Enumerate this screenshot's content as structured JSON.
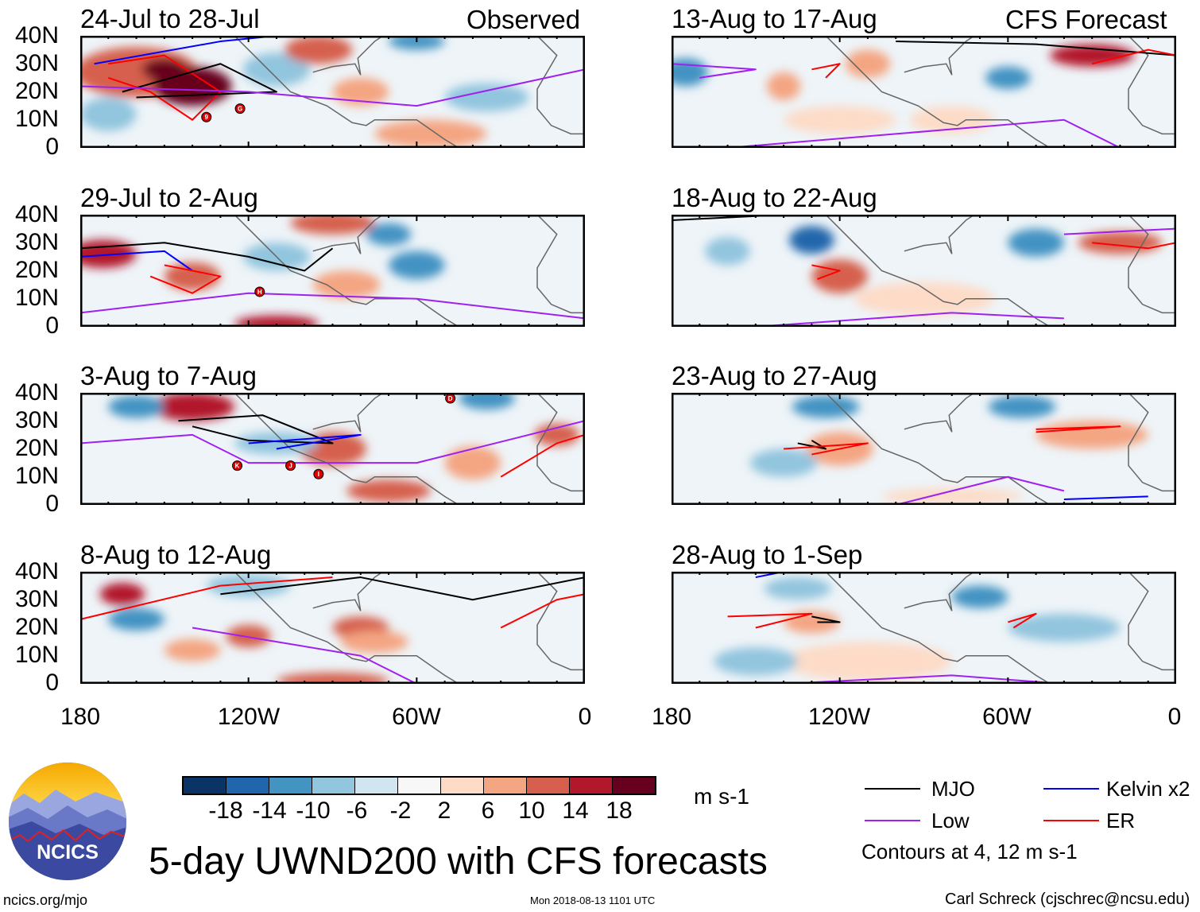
{
  "header": {
    "observed_label": "Observed",
    "forecast_label": "CFS Forecast"
  },
  "panels": [
    {
      "title": "24-Jul to 28-Jul",
      "type": "observed",
      "storms": [
        {
          "label": "9",
          "lon": -135,
          "lat": 11
        },
        {
          "label": "G",
          "lon": -123,
          "lat": 14
        }
      ]
    },
    {
      "title": "29-Jul to 2-Aug",
      "type": "observed",
      "storms": [
        {
          "label": "H",
          "lon": -116,
          "lat": 12.5
        }
      ]
    },
    {
      "title": "3-Aug to 7-Aug",
      "type": "observed",
      "storms": [
        {
          "label": "D",
          "lon": -48,
          "lat": 38
        },
        {
          "label": "K",
          "lon": -124,
          "lat": 14
        },
        {
          "label": "J",
          "lon": -105,
          "lat": 14
        },
        {
          "label": "I",
          "lon": -95,
          "lat": 11
        }
      ]
    },
    {
      "title": "8-Aug to 12-Aug",
      "type": "observed",
      "storms": []
    },
    {
      "title": "13-Aug to 17-Aug",
      "type": "forecast",
      "storms": []
    },
    {
      "title": "18-Aug to 22-Aug",
      "type": "forecast",
      "storms": []
    },
    {
      "title": "23-Aug to 27-Aug",
      "type": "forecast",
      "storms": []
    },
    {
      "title": "28-Aug to 1-Sep",
      "type": "forecast",
      "storms": []
    }
  ],
  "axes": {
    "lat_labels": [
      "40N",
      "30N",
      "20N",
      "10N",
      "0"
    ],
    "lon_labels": [
      "180",
      "120W",
      "60W",
      "0"
    ]
  },
  "colorbar": {
    "colors": [
      "#0a3366",
      "#2166ac",
      "#4393c3",
      "#92c5de",
      "#d1e5f0",
      "#f7f7f7",
      "#fddbc7",
      "#f4a582",
      "#d6604d",
      "#b2182b",
      "#67001f"
    ],
    "labels": [
      "-18",
      "-14",
      "-10",
      "-6",
      "-2",
      "2",
      "6",
      "10",
      "14",
      "18"
    ],
    "units": "m s-1"
  },
  "legend": {
    "items": [
      {
        "label": "MJO",
        "color": "#000000"
      },
      {
        "label": "Kelvin x2",
        "color": "#0000ff"
      },
      {
        "label": "Low",
        "color": "#a020f0"
      },
      {
        "label": "ER",
        "color": "#ff0000"
      }
    ],
    "note": "Contours at 4, 12 m s-1"
  },
  "footer": {
    "title": "5-day UWND200 with CFS forecasts",
    "site": "ncics.org/mjo",
    "timestamp": "Mon 2018-08-13 1101 UTC",
    "author": "Carl Schreck (cjschrec@ncsu.edu)",
    "logo_text": "NCICS"
  }
}
